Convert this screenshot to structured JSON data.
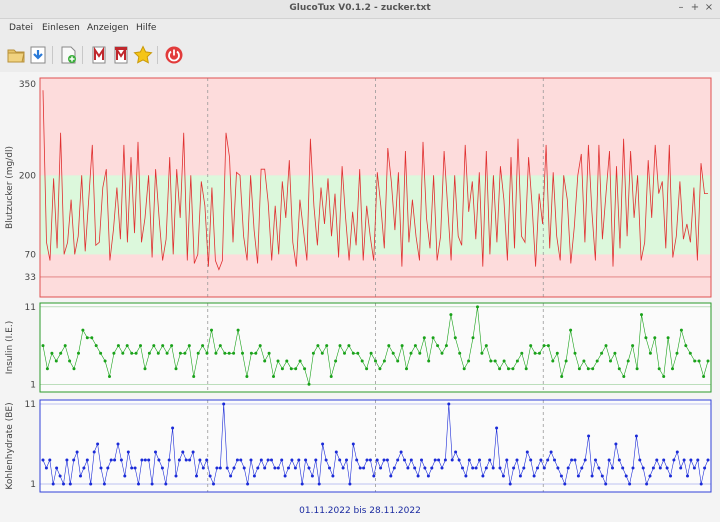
{
  "window": {
    "title": "GlucoTux V0.1.2 - zucker.txt",
    "minimize": "–",
    "maximize": "+",
    "close": "×"
  },
  "menu": {
    "items": [
      "Datei",
      "Einlesen",
      "Anzeigen",
      "Hilfe"
    ]
  },
  "toolbar": {
    "icons": [
      "folder-open-icon",
      "download-icon",
      "new-document-icon",
      "pdf-report-icon",
      "pdf-monthly-icon",
      "star-icon",
      "power-icon"
    ]
  },
  "colors": {
    "glucose": "#e03030",
    "glucose_high_band": "#fddcdc",
    "glucose_target_band": "#dcf8dc",
    "insulin": "#1aa21a",
    "carbs": "#1b2bd8",
    "date_range_text": "#1a2aa0"
  },
  "charts": {
    "date_range": "01.11.2022 bis 28.11.2022"
  },
  "chart_data": [
    {
      "type": "line",
      "ylabel": "Blutzucker (mg/dl)",
      "yticks": [
        33,
        70,
        200,
        350
      ],
      "ylim": [
        0,
        360
      ],
      "target_range": [
        70,
        200
      ],
      "x": "sample index over 01.11.2022–28.11.2022",
      "values": [
        340,
        90,
        60,
        195,
        80,
        270,
        70,
        90,
        160,
        70,
        100,
        200,
        75,
        160,
        250,
        85,
        90,
        180,
        210,
        60,
        110,
        180,
        95,
        250,
        90,
        230,
        105,
        255,
        90,
        130,
        200,
        65,
        210,
        130,
        60,
        95,
        230,
        70,
        210,
        130,
        270,
        60,
        200,
        55,
        70,
        190,
        150,
        50,
        180,
        60,
        45,
        60,
        270,
        230,
        90,
        205,
        200,
        100,
        60,
        200,
        110,
        55,
        210,
        210,
        155,
        60,
        150,
        70,
        190,
        130,
        225,
        90,
        50,
        160,
        110,
        60,
        260,
        150,
        85,
        180,
        120,
        195,
        100,
        170,
        65,
        215,
        130,
        60,
        140,
        85,
        210,
        60,
        150,
        100,
        60,
        205,
        150,
        80,
        245,
        190,
        110,
        205,
        50,
        240,
        90,
        160,
        100,
        60,
        255,
        130,
        80,
        200,
        60,
        100,
        240,
        150,
        60,
        200,
        100,
        85,
        250,
        140,
        190,
        95,
        205,
        50,
        240,
        70,
        200,
        90,
        215,
        160,
        60,
        230,
        80,
        260,
        100,
        90,
        230,
        150,
        50,
        170,
        120,
        250,
        80,
        205,
        100,
        60,
        200,
        160,
        55,
        115,
        200,
        235,
        90,
        250,
        140,
        60,
        250,
        95,
        170,
        240,
        50,
        215,
        80,
        260,
        100,
        240,
        130,
        200,
        60,
        90,
        225,
        130,
        250,
        170,
        190,
        80,
        250,
        65,
        100,
        190,
        95,
        120,
        90,
        180,
        60,
        220,
        170,
        170
      ]
    },
    {
      "type": "line",
      "ylabel": "Insulin (I.E.)",
      "yticks": [
        1,
        11
      ],
      "ylim": [
        0,
        11.5
      ],
      "values": [
        6,
        3,
        5,
        4,
        5,
        6,
        4,
        3,
        5,
        8,
        7,
        7,
        6,
        5,
        4,
        2,
        5,
        6,
        5,
        6,
        5,
        5,
        6,
        3,
        5,
        6,
        5,
        6,
        5,
        6,
        3,
        5,
        5,
        6,
        2,
        5,
        6,
        5,
        8,
        5,
        6,
        5,
        5,
        5,
        8,
        5,
        2,
        5,
        5,
        6,
        4,
        5,
        2,
        4,
        3,
        4,
        3,
        3,
        4,
        3,
        1,
        5,
        6,
        5,
        6,
        2,
        4,
        6,
        5,
        6,
        5,
        5,
        4,
        3,
        5,
        4,
        3,
        4,
        6,
        5,
        4,
        6,
        3,
        5,
        6,
        5,
        7,
        4,
        7,
        6,
        5,
        6,
        10,
        7,
        5,
        3,
        4,
        7,
        11,
        5,
        6,
        4,
        4,
        3,
        4,
        3,
        3,
        4,
        5,
        3,
        6,
        5,
        5,
        6,
        6,
        4,
        5,
        2,
        4,
        8,
        5,
        3,
        4,
        3,
        3,
        4,
        5,
        6,
        4,
        5,
        3,
        2,
        4,
        6,
        3,
        10,
        7,
        5,
        7,
        3,
        2,
        7,
        3,
        5,
        8,
        6,
        5,
        4,
        4,
        2,
        4
      ]
    },
    {
      "type": "line",
      "ylabel": "Kohlenhydrate (BE)",
      "yticks": [
        1,
        11
      ],
      "ylim": [
        0,
        11.5
      ],
      "values": [
        4,
        3,
        4,
        1,
        3,
        2,
        1,
        4,
        1,
        4,
        5,
        2,
        3,
        4,
        1,
        5,
        6,
        3,
        1,
        3,
        4,
        4,
        6,
        4,
        2,
        5,
        3,
        3,
        1,
        4,
        4,
        4,
        1,
        5,
        4,
        3,
        1,
        4,
        8,
        2,
        4,
        5,
        4,
        4,
        5,
        2,
        4,
        3,
        4,
        2,
        1,
        3,
        3,
        11,
        3,
        2,
        3,
        4,
        4,
        3,
        1,
        4,
        2,
        3,
        4,
        3,
        4,
        4,
        3,
        3,
        4,
        2,
        3,
        4,
        3,
        4,
        1,
        4,
        3,
        2,
        4,
        1,
        6,
        4,
        3,
        2,
        5,
        4,
        3,
        4,
        1,
        6,
        4,
        3,
        3,
        4,
        4,
        2,
        4,
        3,
        4,
        4,
        2,
        3,
        4,
        5,
        4,
        3,
        4,
        3,
        2,
        4,
        3,
        2,
        3,
        4,
        4,
        3,
        4,
        11,
        4,
        5,
        4,
        3,
        2,
        4,
        3,
        3,
        4,
        2,
        3,
        4,
        3,
        8,
        3,
        2,
        4,
        1,
        3,
        4,
        2,
        3,
        5,
        4,
        2,
        3,
        4,
        3,
        4,
        5,
        4,
        3,
        2,
        1,
        3,
        4,
        4,
        2,
        3,
        4,
        7,
        2,
        4,
        3,
        2,
        1,
        4,
        3,
        6,
        4,
        3,
        2,
        1,
        3,
        7,
        4,
        3,
        1,
        2,
        3,
        4,
        3,
        4,
        3,
        2,
        4,
        5,
        3,
        4,
        2,
        4,
        3,
        4,
        1,
        3,
        4
      ]
    }
  ]
}
